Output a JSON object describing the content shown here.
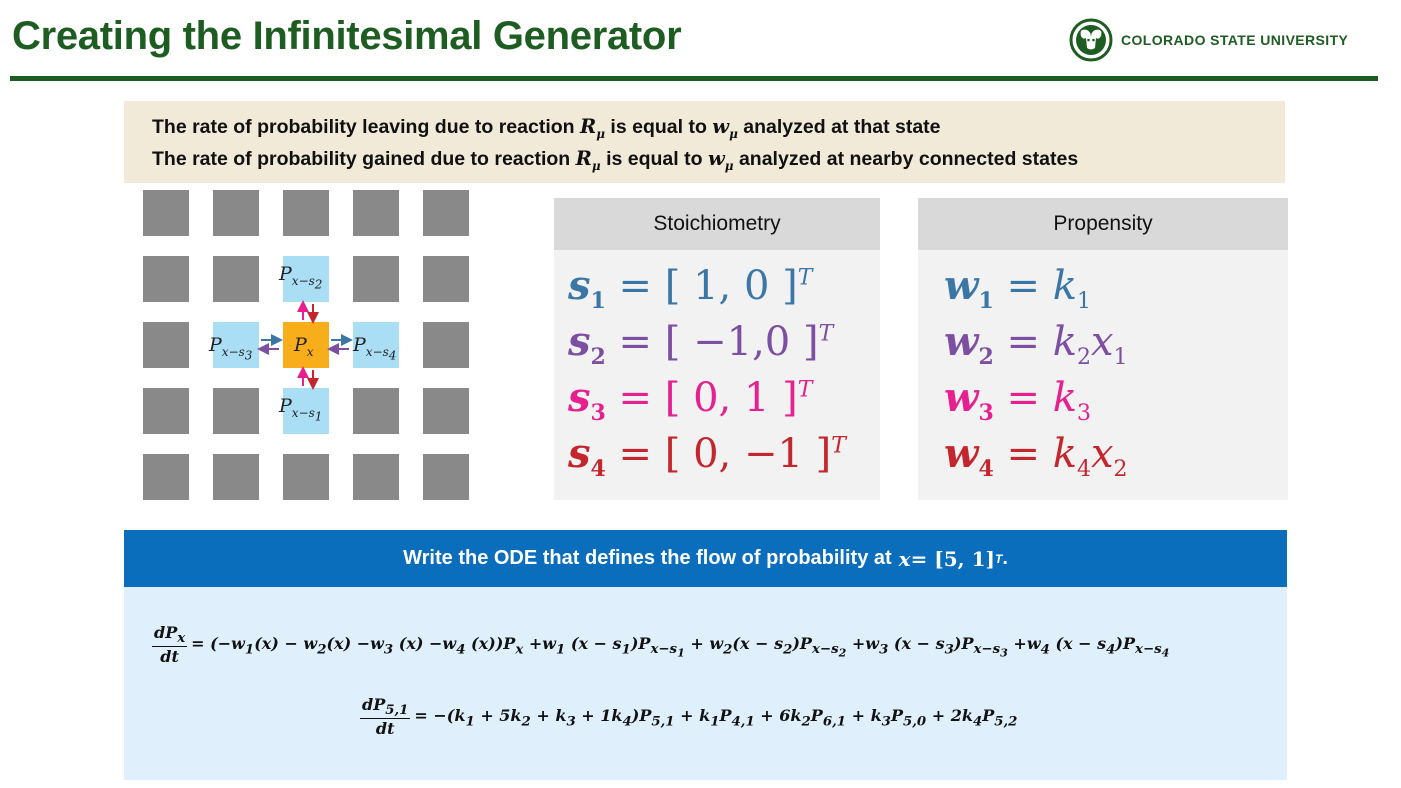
{
  "header": {
    "title": "Creating the Infinitesimal Generator",
    "logo_text": "COLORADO STATE UNIVERSITY"
  },
  "intro": {
    "line1_a": "The rate of probability leaving due to reaction ",
    "line1_b": " is equal to ",
    "line1_c": " analyzed at that state",
    "line2_a": "The rate of probability gained due to reaction ",
    "line2_b": " is equal to ",
    "line2_c": " analyzed at nearby connected states"
  },
  "grid_labels": {
    "top": "x−s",
    "left": "x−s",
    "center": "x",
    "right": "x−s",
    "bottom": "x−s"
  },
  "stoichiometry": {
    "heading": "Stoichiometry",
    "rows": [
      {
        "lhs": "s",
        "idx": "1",
        "rhs": " = [ 1, 0 ]",
        "color": "#3b77a6"
      },
      {
        "lhs": "s",
        "idx": "2",
        "rhs": " = [ −1,0 ]",
        "color": "#7c4fa3"
      },
      {
        "lhs": "s",
        "idx": "3",
        "rhs": " = [ 0, 1 ]",
        "color": "#e6208f"
      },
      {
        "lhs": "s",
        "idx": "4",
        "rhs": " = [ 0, −1 ]",
        "color": "#c4262e"
      }
    ]
  },
  "propensity": {
    "heading": "Propensity",
    "rows": [
      {
        "lhs": "w",
        "idx": "1",
        "color": "#3b77a6"
      },
      {
        "lhs": "w",
        "idx": "2",
        "color": "#7c4fa3"
      },
      {
        "lhs": "w",
        "idx": "3",
        "color": "#e6208f"
      },
      {
        "lhs": "w",
        "idx": "4",
        "color": "#c4262e"
      }
    ]
  },
  "ode": {
    "prompt_a": "Write the ODE that defines the flow of probability at ",
    "prompt_b": " = [5, 1]",
    "prompt_c": "."
  },
  "colors": {
    "title_green": "#1e5d22",
    "intro_bg": "#f1ead9",
    "ode_bar": "#0a6ebd",
    "ode_box": "#dff0fc",
    "grid_gray": "#898989",
    "grid_blue": "#a9def4",
    "grid_orange": "#f8ad1b"
  }
}
